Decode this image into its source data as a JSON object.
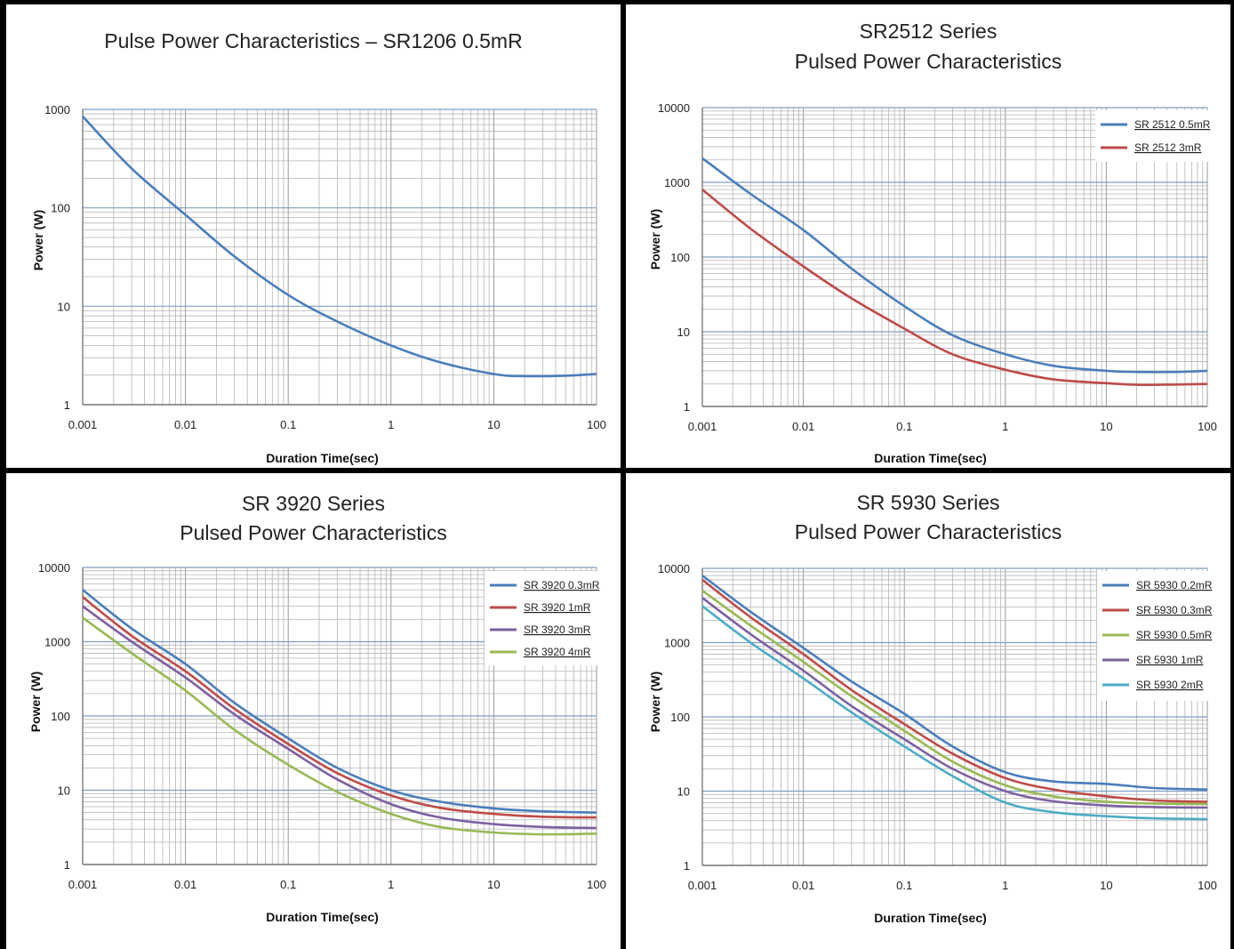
{
  "chart_data": [
    {
      "type": "line",
      "title_lines": [
        "Pulse Power Characteristics – SR1206 0.5mR"
      ],
      "xlabel": "Duration Time(sec)",
      "ylabel": "Power (W)",
      "x_scale": "log",
      "y_scale": "log",
      "xlim": [
        0.001,
        100
      ],
      "ylim": [
        1,
        1000
      ],
      "x_ticks": [
        "0.001",
        "0.01",
        "0.1",
        "1",
        "10",
        "100"
      ],
      "y_ticks": [
        "1",
        "10",
        "100",
        "1000"
      ],
      "grid": true,
      "legend": "none",
      "series": [
        {
          "color": "#4a7ebb",
          "x": [
            0.001,
            0.003,
            0.01,
            0.03,
            0.1,
            0.3,
            1,
            3,
            10,
            20,
            50,
            100
          ],
          "y": [
            850,
            250,
            85,
            32,
            13,
            7,
            4,
            2.7,
            2.05,
            1.95,
            1.97,
            2.05
          ]
        }
      ]
    },
    {
      "type": "line",
      "title_lines": [
        "SR2512 Series",
        "Pulsed Power Characteristics"
      ],
      "xlabel": "Duration Time(sec)",
      "ylabel": "Power (W)",
      "x_scale": "log",
      "y_scale": "log",
      "xlim": [
        0.001,
        100
      ],
      "ylim": [
        1,
        10000
      ],
      "x_ticks": [
        "0.001",
        "0.01",
        "0.1",
        "1",
        "10",
        "100"
      ],
      "y_ticks": [
        "1",
        "10",
        "100",
        "1000",
        "10000"
      ],
      "grid": true,
      "legend": "top-right",
      "series": [
        {
          "name": "SR 2512 0.5mR",
          "color": "#4a7ebb",
          "x": [
            0.001,
            0.003,
            0.01,
            0.03,
            0.1,
            0.3,
            1,
            3,
            10,
            20,
            50,
            100
          ],
          "y": [
            2100,
            700,
            230,
            70,
            22,
            9,
            5,
            3.5,
            3,
            2.9,
            2.9,
            3
          ]
        },
        {
          "name": "SR 2512  3mR",
          "color": "#be4b48",
          "x": [
            0.001,
            0.003,
            0.01,
            0.03,
            0.1,
            0.3,
            1,
            3,
            10,
            20,
            50,
            100
          ],
          "y": [
            800,
            240,
            75,
            28,
            11,
            5,
            3.1,
            2.3,
            2.05,
            1.95,
            1.97,
            2
          ]
        }
      ]
    },
    {
      "type": "line",
      "title_lines": [
        "SR 3920 Series",
        "Pulsed Power Characteristics"
      ],
      "xlabel": "Duration Time(sec)",
      "ylabel": "Power (W)",
      "x_scale": "log",
      "y_scale": "log",
      "xlim": [
        0.001,
        100
      ],
      "ylim": [
        1,
        10000
      ],
      "x_ticks": [
        "0.001",
        "0.01",
        "0.1",
        "1",
        "10",
        "100"
      ],
      "y_ticks": [
        "1",
        "10",
        "100",
        "1000",
        "10000"
      ],
      "grid": true,
      "legend": "top-right",
      "series": [
        {
          "name": "SR 3920 0.3mR",
          "color": "#4a7ebb",
          "x": [
            0.001,
            0.003,
            0.01,
            0.03,
            0.1,
            0.3,
            1,
            3,
            10,
            30,
            100
          ],
          "y": [
            5000,
            1500,
            500,
            150,
            50,
            20,
            10,
            7,
            5.7,
            5.2,
            5
          ]
        },
        {
          "name": "SR 3920  1mR",
          "color": "#be4b48",
          "x": [
            0.001,
            0.003,
            0.01,
            0.03,
            0.1,
            0.3,
            1,
            3,
            10,
            30,
            100
          ],
          "y": [
            4000,
            1200,
            400,
            125,
            42,
            17,
            8.5,
            5.8,
            4.8,
            4.4,
            4.3
          ]
        },
        {
          "name": "SR 3920  3mR",
          "color": "#7d60a0",
          "x": [
            0.001,
            0.003,
            0.01,
            0.03,
            0.1,
            0.3,
            1,
            3,
            10,
            30,
            100
          ],
          "y": [
            3000,
            1000,
            330,
            105,
            36,
            14,
            6.5,
            4.3,
            3.5,
            3.2,
            3.1
          ]
        },
        {
          "name": "SR 3920  4mR",
          "color": "#98b954",
          "x": [
            0.001,
            0.003,
            0.01,
            0.03,
            0.1,
            0.3,
            1,
            3,
            10,
            30,
            100
          ],
          "y": [
            2100,
            700,
            220,
            65,
            22,
            9.5,
            4.8,
            3.2,
            2.7,
            2.55,
            2.6
          ]
        }
      ]
    },
    {
      "type": "line",
      "title_lines": [
        "SR 5930 Series",
        "Pulsed Power Characteristics"
      ],
      "xlabel": "Duration Time(sec)",
      "ylabel": "Power (W)",
      "x_scale": "log",
      "y_scale": "log",
      "xlim": [
        0.001,
        100
      ],
      "ylim": [
        1,
        10000
      ],
      "x_ticks": [
        "0.001",
        "0.01",
        "0.1",
        "1",
        "10",
        "100"
      ],
      "y_ticks": [
        "1",
        "10",
        "100",
        "1000",
        "10000"
      ],
      "grid": true,
      "legend": "top-right",
      "series": [
        {
          "name": "SR 5930 0.2mR",
          "color": "#4a7ebb",
          "x": [
            0.001,
            0.003,
            0.01,
            0.03,
            0.1,
            0.3,
            1,
            3,
            10,
            30,
            100
          ],
          "y": [
            8000,
            2600,
            850,
            300,
            110,
            40,
            18,
            13.5,
            12.5,
            11,
            10.5
          ]
        },
        {
          "name": "SR 5930 0.3mR",
          "color": "#be4b48",
          "x": [
            0.001,
            0.003,
            0.01,
            0.03,
            0.1,
            0.3,
            1,
            3,
            10,
            30,
            100
          ],
          "y": [
            7000,
            2200,
            700,
            230,
            80,
            32,
            15,
            10.5,
            8.5,
            7.5,
            7.2
          ]
        },
        {
          "name": "SR 5930 0.5mR",
          "color": "#98b954",
          "x": [
            0.001,
            0.003,
            0.01,
            0.03,
            0.1,
            0.3,
            1,
            3,
            10,
            30,
            100
          ],
          "y": [
            5000,
            1700,
            550,
            190,
            65,
            25,
            12,
            8.5,
            7.2,
            6.8,
            6.7
          ]
        },
        {
          "name": "SR 5930  1mR",
          "color": "#7d60a0",
          "x": [
            0.001,
            0.003,
            0.01,
            0.03,
            0.1,
            0.3,
            1,
            3,
            10,
            30,
            100
          ],
          "y": [
            4000,
            1300,
            420,
            140,
            50,
            20,
            10,
            7.3,
            6.4,
            6.1,
            6
          ]
        },
        {
          "name": "SR 5930  2mR",
          "color": "#4bacc6",
          "x": [
            0.001,
            0.003,
            0.01,
            0.03,
            0.1,
            0.3,
            1,
            3,
            10,
            30,
            100
          ],
          "y": [
            3100,
            1000,
            330,
            115,
            40,
            16,
            7,
            5.2,
            4.6,
            4.3,
            4.2
          ]
        }
      ]
    }
  ]
}
